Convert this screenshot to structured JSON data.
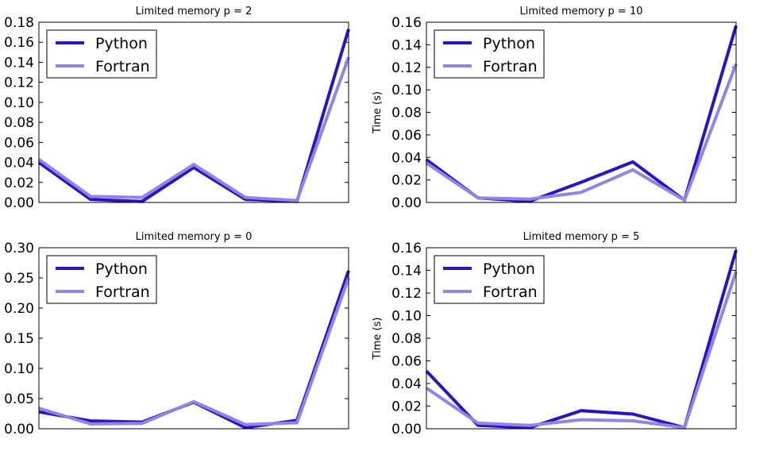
{
  "colors": {
    "python": "#2a12c8",
    "fortran": "#9084e4",
    "axes": "#000000",
    "background": "#ffffff"
  },
  "chart_data": [
    {
      "type": "line",
      "title": "Limited memory p = 2",
      "xlabel": "",
      "ylabel": "",
      "x": [
        0,
        1,
        2,
        3,
        4,
        5,
        6
      ],
      "ylim": [
        0,
        0.18
      ],
      "yticks": [
        "0.00",
        "0.02",
        "0.04",
        "0.06",
        "0.08",
        "0.10",
        "0.12",
        "0.14",
        "0.16",
        "0.18"
      ],
      "legend_position": "top-left",
      "series": [
        {
          "name": "Python",
          "values": [
            0.04,
            0.003,
            0.001,
            0.035,
            0.003,
            0.001,
            0.173
          ]
        },
        {
          "name": "Fortran",
          "values": [
            0.043,
            0.006,
            0.005,
            0.038,
            0.005,
            0.002,
            0.145
          ]
        }
      ]
    },
    {
      "type": "line",
      "title": "Limited memory p = 10",
      "xlabel": "",
      "ylabel": "Time (s)",
      "x": [
        0,
        1,
        2,
        3,
        4,
        5,
        6
      ],
      "ylim": [
        0,
        0.16
      ],
      "yticks": [
        "0.00",
        "0.02",
        "0.04",
        "0.06",
        "0.08",
        "0.10",
        "0.12",
        "0.14",
        "0.16"
      ],
      "legend_position": "top-left",
      "series": [
        {
          "name": "Python",
          "values": [
            0.038,
            0.004,
            0.001,
            0.018,
            0.036,
            0.002,
            0.157
          ]
        },
        {
          "name": "Fortran",
          "values": [
            0.035,
            0.004,
            0.003,
            0.009,
            0.029,
            0.002,
            0.123
          ]
        }
      ]
    },
    {
      "type": "line",
      "title": "Limited memory p = 0",
      "xlabel": "",
      "ylabel": "",
      "x": [
        0,
        1,
        2,
        3,
        4,
        5,
        6
      ],
      "ylim": [
        0,
        0.3
      ],
      "yticks": [
        "0.00",
        "0.05",
        "0.10",
        "0.15",
        "0.20",
        "0.25",
        "0.30"
      ],
      "legend_position": "top-left",
      "series": [
        {
          "name": "Python",
          "values": [
            0.028,
            0.013,
            0.011,
            0.044,
            0.002,
            0.014,
            0.262
          ]
        },
        {
          "name": "Fortran",
          "values": [
            0.034,
            0.008,
            0.009,
            0.045,
            0.007,
            0.01,
            0.25
          ]
        }
      ]
    },
    {
      "type": "line",
      "title": "Limited memory p = 5",
      "xlabel": "",
      "ylabel": "Time (s)",
      "x": [
        0,
        1,
        2,
        3,
        4,
        5,
        6
      ],
      "ylim": [
        0,
        0.16
      ],
      "yticks": [
        "0.00",
        "0.02",
        "0.04",
        "0.06",
        "0.08",
        "0.10",
        "0.12",
        "0.14",
        "0.16"
      ],
      "legend_position": "top-left",
      "series": [
        {
          "name": "Python",
          "values": [
            0.051,
            0.003,
            0.001,
            0.016,
            0.013,
            0.001,
            0.158
          ]
        },
        {
          "name": "Fortran",
          "values": [
            0.036,
            0.005,
            0.003,
            0.008,
            0.007,
            0.001,
            0.139
          ]
        }
      ]
    }
  ]
}
